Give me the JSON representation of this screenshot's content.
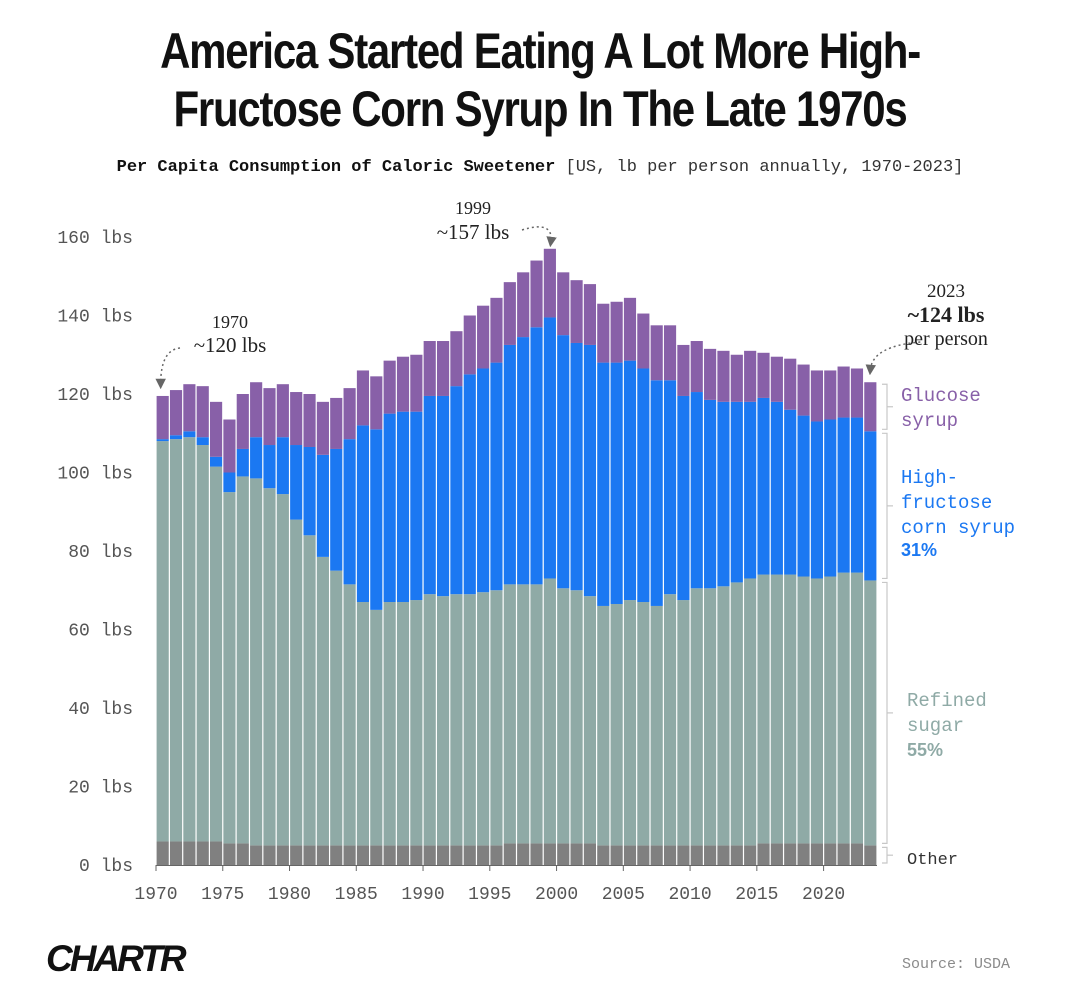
{
  "header": {
    "title_line1": "America Started Eating A Lot More High-",
    "title_line2": "Fructose Corn Syrup In The Late 1970s",
    "subtitle": "Per Capita Consumption of Caloric Sweetener",
    "subtitle_meta": "[US, lb per person annually, 1970-2023]"
  },
  "footer": {
    "logo": "CHARTR",
    "source": "Source: USDA"
  },
  "colors": {
    "other": "#808080",
    "refined_sugar": "#8faaa6",
    "hfcs": "#1b78f2",
    "glucose_syrup": "#8860a8",
    "axis_text": "#555555",
    "annotation": "#222222"
  },
  "chart_data": {
    "type": "bar",
    "stacked": true,
    "title": "Per Capita Consumption of Caloric Sweetener",
    "xlabel": "",
    "ylabel": "",
    "ylim": [
      0,
      160
    ],
    "y_ticks": [
      0,
      20,
      40,
      60,
      80,
      100,
      120,
      140,
      160
    ],
    "y_tick_labels": [
      "0 lbs",
      "20 lbs",
      "40 lbs",
      "60 lbs",
      "80 lbs",
      "100 lbs",
      "120 lbs",
      "140 lbs",
      "160 lbs"
    ],
    "x_tick_labels": [
      "1970",
      "1975",
      "1980",
      "1985",
      "1990",
      "1995",
      "2000",
      "2005",
      "2010",
      "2015",
      "2020"
    ],
    "categories": [
      1970,
      1971,
      1972,
      1973,
      1974,
      1975,
      1976,
      1977,
      1978,
      1979,
      1980,
      1981,
      1982,
      1983,
      1984,
      1985,
      1986,
      1987,
      1988,
      1989,
      1990,
      1991,
      1992,
      1993,
      1994,
      1995,
      1996,
      1997,
      1998,
      1999,
      2000,
      2001,
      2002,
      2003,
      2004,
      2005,
      2006,
      2007,
      2008,
      2009,
      2010,
      2011,
      2012,
      2013,
      2014,
      2015,
      2016,
      2017,
      2018,
      2019,
      2020,
      2021,
      2022,
      2023
    ],
    "series": [
      {
        "name": "Other",
        "values": [
          6,
          6,
          6,
          6,
          6,
          5.5,
          5.5,
          5,
          5,
          5,
          5,
          5,
          5,
          5,
          5,
          5,
          5,
          5,
          5,
          5,
          5,
          5,
          5,
          5,
          5,
          5,
          5.5,
          5.5,
          5.5,
          5.5,
          5.5,
          5.5,
          5.5,
          5,
          5,
          5,
          5,
          5,
          5,
          5,
          5,
          5,
          5,
          5,
          5,
          5.5,
          5.5,
          5.5,
          5.5,
          5.5,
          5.5,
          5.5,
          5.5,
          5
        ]
      },
      {
        "name": "Refined sugar",
        "values": [
          102,
          102.5,
          103,
          101,
          95.5,
          89.5,
          93.5,
          93.5,
          91,
          89.5,
          83,
          79,
          73.5,
          70,
          66.5,
          62,
          60,
          62,
          62,
          62.5,
          64,
          63.5,
          64,
          64,
          64.5,
          65,
          66,
          66,
          66,
          67.5,
          65,
          64.5,
          63,
          61,
          61.5,
          62.5,
          62,
          61,
          64,
          62.5,
          65.5,
          65.5,
          66,
          67,
          68,
          68.5,
          68.5,
          68.5,
          68,
          67.5,
          68,
          69,
          69,
          67.5
        ]
      },
      {
        "name": "High-fructose corn syrup",
        "values": [
          0.5,
          1,
          1.5,
          2,
          2.5,
          5,
          7,
          10.5,
          11,
          14.5,
          19,
          22.5,
          26,
          31,
          37,
          45,
          46,
          48,
          48.5,
          48,
          50.5,
          51,
          53,
          56,
          57,
          58,
          61,
          63,
          65.5,
          66.5,
          64.5,
          63,
          64,
          62,
          61.5,
          61,
          59.5,
          57.5,
          54.5,
          52,
          50,
          48,
          47,
          46,
          45,
          45,
          44,
          42,
          41,
          40,
          40,
          39.5,
          39.5,
          38
        ]
      },
      {
        "name": "Glucose syrup",
        "values": [
          11,
          11.5,
          12,
          13,
          14,
          13.5,
          14,
          14,
          14.5,
          13.5,
          13.5,
          13.5,
          13.5,
          13,
          13,
          14,
          13.5,
          13.5,
          14,
          14.5,
          14,
          14,
          14,
          15,
          16,
          16.5,
          16,
          16.5,
          17,
          17.5,
          16,
          16,
          15.5,
          15,
          15.5,
          16,
          14,
          14,
          14,
          13,
          13,
          13,
          13,
          12,
          13,
          11.5,
          11.5,
          13,
          13,
          13,
          12.5,
          13,
          12.5,
          12.5
        ]
      }
    ],
    "legend_labels": {
      "glucose": [
        "Glucose",
        "syrup"
      ],
      "hfcs": [
        "High-",
        "fructose",
        "corn syrup"
      ],
      "hfcs_share": "31%",
      "sugar": [
        "Refined",
        "sugar"
      ],
      "sugar_share": "55%",
      "other": "Other"
    },
    "annotations": {
      "a1970": {
        "year_label": "1970",
        "value_label": "~120 lbs"
      },
      "a1999": {
        "year_label": "1999",
        "value_label": "~157 lbs"
      },
      "a2023": {
        "year_label": "2023",
        "value_label": "~124 lbs",
        "suffix": "per person"
      }
    }
  }
}
